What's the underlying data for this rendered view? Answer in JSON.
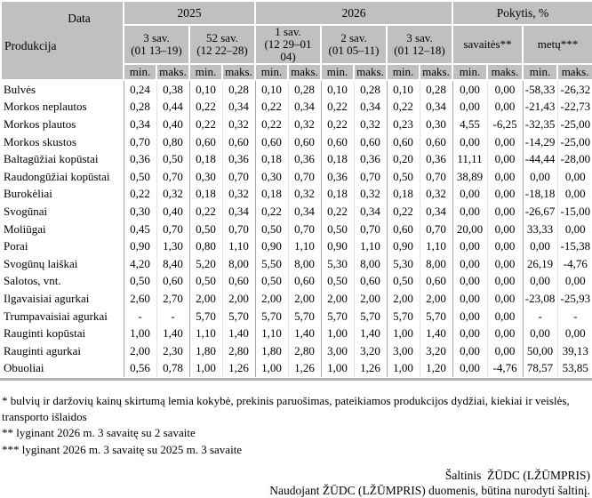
{
  "table": {
    "corner": {
      "top_label": "Data",
      "bottom_label": "Produkcija"
    },
    "year_groups": [
      {
        "label": "2025"
      },
      {
        "label": "2026"
      },
      {
        "label": "Pokytis, %"
      }
    ],
    "week_groups": [
      {
        "line1": "3 sav.",
        "line2": "(01 13–19)"
      },
      {
        "line1": "52 sav.",
        "line2": "(12 22–28)"
      },
      {
        "line1": "1 sav.",
        "line2": "(12 29–01 04)"
      },
      {
        "line1": "2 sav.",
        "line2": "(01 05–11)"
      },
      {
        "line1": "3 sav.",
        "line2": "(01 12–18)"
      },
      {
        "line1": "savaitės**"
      },
      {
        "line1": "metų***"
      }
    ],
    "min_label": "min.",
    "maks_label": "maks.",
    "rows": [
      {
        "label": "Bulvės",
        "values": [
          "0,24",
          "0,38",
          "0,10",
          "0,28",
          "0,10",
          "0,28",
          "0,10",
          "0,28",
          "0,10",
          "0,28",
          "0,00",
          "0,00",
          "-58,33",
          "-26,32"
        ]
      },
      {
        "label": "Morkos neplautos",
        "values": [
          "0,28",
          "0,44",
          "0,22",
          "0,34",
          "0,22",
          "0,34",
          "0,22",
          "0,34",
          "0,22",
          "0,34",
          "0,00",
          "0,00",
          "-21,43",
          "-22,73"
        ]
      },
      {
        "label": "Morkos plautos",
        "values": [
          "0,34",
          "0,40",
          "0,22",
          "0,32",
          "0,22",
          "0,32",
          "0,22",
          "0,32",
          "0,23",
          "0,30",
          "4,55",
          "-6,25",
          "-32,35",
          "-25,00"
        ]
      },
      {
        "label": "Morkos skustos",
        "values": [
          "0,70",
          "0,80",
          "0,60",
          "0,60",
          "0,60",
          "0,60",
          "0,60",
          "0,60",
          "0,60",
          "0,60",
          "0,00",
          "0,00",
          "-14,29",
          "-25,00"
        ]
      },
      {
        "label": "Baltagūžiai kopūstai",
        "values": [
          "0,36",
          "0,50",
          "0,18",
          "0,36",
          "0,18",
          "0,36",
          "0,18",
          "0,36",
          "0,20",
          "0,36",
          "11,11",
          "0,00",
          "-44,44",
          "-28,00"
        ]
      },
      {
        "label": "Raudongūžiai kopūstai",
        "values": [
          "0,50",
          "0,70",
          "0,30",
          "0,70",
          "0,30",
          "0,70",
          "0,36",
          "0,70",
          "0,50",
          "0,70",
          "38,89",
          "0,00",
          "0,00",
          "0,00"
        ]
      },
      {
        "label": "Burokėliai",
        "values": [
          "0,22",
          "0,32",
          "0,18",
          "0,32",
          "0,18",
          "0,32",
          "0,18",
          "0,32",
          "0,18",
          "0,32",
          "0,00",
          "0,00",
          "-18,18",
          "0,00"
        ]
      },
      {
        "label": "Svogūnai",
        "values": [
          "0,30",
          "0,40",
          "0,22",
          "0,34",
          "0,22",
          "0,34",
          "0,22",
          "0,34",
          "0,22",
          "0,34",
          "0,00",
          "0,00",
          "-26,67",
          "-15,00"
        ]
      },
      {
        "label": "Moliūgai",
        "values": [
          "0,45",
          "0,70",
          "0,50",
          "0,70",
          "0,50",
          "0,70",
          "0,50",
          "0,70",
          "0,60",
          "0,70",
          "20,00",
          "0,00",
          "33,33",
          "0,00"
        ]
      },
      {
        "label": "Porai",
        "values": [
          "0,90",
          "1,30",
          "0,80",
          "1,10",
          "0,90",
          "1,10",
          "0,90",
          "1,10",
          "0,90",
          "1,10",
          "0,00",
          "0,00",
          "0,00",
          "-15,38"
        ]
      },
      {
        "label": "Svogūnų laiškai",
        "values": [
          "4,20",
          "8,40",
          "5,20",
          "8,00",
          "5,50",
          "8,00",
          "5,30",
          "8,00",
          "5,30",
          "8,00",
          "0,00",
          "0,00",
          "26,19",
          "-4,76"
        ]
      },
      {
        "label": "Salotos, vnt.",
        "values": [
          "0,50",
          "0,60",
          "0,50",
          "0,60",
          "0,50",
          "0,60",
          "0,50",
          "0,60",
          "0,50",
          "0,60",
          "0,00",
          "0,00",
          "0,00",
          "0,00"
        ]
      },
      {
        "label": "Ilgavaisiai agurkai",
        "values": [
          "2,60",
          "2,70",
          "2,00",
          "2,00",
          "2,00",
          "2,00",
          "2,00",
          "2,00",
          "2,00",
          "2,00",
          "0,00",
          "0,00",
          "-23,08",
          "-25,93"
        ]
      },
      {
        "label": "Trumpavaisiai agurkai",
        "values": [
          "-",
          "-",
          "5,70",
          "5,70",
          "5,70",
          "5,70",
          "5,70",
          "5,70",
          "5,70",
          "5,70",
          "0,00",
          "0,00",
          "-",
          "-"
        ]
      },
      {
        "label": "Rauginti kopūstai",
        "values": [
          "1,00",
          "1,40",
          "1,10",
          "1,40",
          "1,10",
          "1,40",
          "1,00",
          "1,40",
          "1,00",
          "1,40",
          "0,00",
          "0,00",
          "0,00",
          "0,00"
        ]
      },
      {
        "label": "Rauginti agurkai",
        "values": [
          "2,00",
          "2,30",
          "1,80",
          "2,80",
          "1,80",
          "2,80",
          "3,00",
          "3,20",
          "3,00",
          "3,20",
          "0,00",
          "0,00",
          "50,00",
          "39,13"
        ]
      },
      {
        "label": "Obuoliai",
        "values": [
          "0,56",
          "0,78",
          "1,00",
          "1,26",
          "1,00",
          "1,26",
          "1,00",
          "1,26",
          "1,00",
          "1,20",
          "0,00",
          "-4,76",
          "78,57",
          "53,85"
        ]
      }
    ]
  },
  "footnotes": [
    "* bulvių ir daržovių kainų skirtumą lemia kokybė, prekinis paruošimas, pateikiamos produkcijos dydžiai, kiekiai ir veislės, transporto išlaidos",
    "** lyginant 2026 m. 3 savaitę su 2 savaite",
    "*** lyginant 2026 m. 3 savaitę su 2025 m. 3 savaite"
  ],
  "source": {
    "line1": "Šaltinis  ŽŪDC (LŽŪMPRIS)",
    "line2": "Naudojant ŽŪDC (LŽŪMPRIS) duomenis, būtina nurodyti šaltinį."
  }
}
